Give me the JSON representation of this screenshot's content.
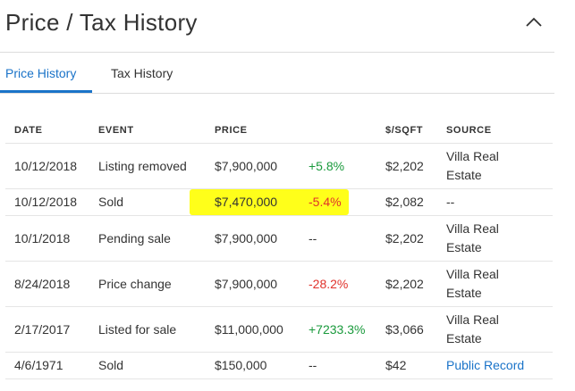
{
  "header": {
    "title": "Price / Tax History"
  },
  "tabs": [
    {
      "label": "Price History",
      "active": true
    },
    {
      "label": "Tax History",
      "active": false
    }
  ],
  "table": {
    "columns": [
      "DATE",
      "EVENT",
      "PRICE",
      "",
      "$/SQFT",
      "SOURCE"
    ],
    "rows": [
      {
        "date": "10/12/2018",
        "event": "Listing removed",
        "price": "$7,900,000",
        "change": "+5.8%",
        "change_dir": "pos",
        "sqft": "$2,202",
        "source": "Villa Real Estate",
        "source_link": false,
        "highlight": false
      },
      {
        "date": "10/12/2018",
        "event": "Sold",
        "price": "$7,470,000",
        "change": "-5.4%",
        "change_dir": "neg",
        "sqft": "$2,082",
        "source": "--",
        "source_link": false,
        "highlight": true
      },
      {
        "date": "10/1/2018",
        "event": "Pending sale",
        "price": "$7,900,000",
        "change": "--",
        "change_dir": "none",
        "sqft": "$2,202",
        "source": "Villa Real Estate",
        "source_link": false,
        "highlight": false
      },
      {
        "date": "8/24/2018",
        "event": "Price change",
        "price": "$7,900,000",
        "change": "-28.2%",
        "change_dir": "neg",
        "sqft": "$2,202",
        "source": "Villa Real Estate",
        "source_link": false,
        "highlight": false
      },
      {
        "date": "2/17/2017",
        "event": "Listed for sale",
        "price": "$11,000,000",
        "change": "+7233.3%",
        "change_dir": "pos",
        "sqft": "$3,066",
        "source": "Villa Real Estate",
        "source_link": false,
        "highlight": false
      },
      {
        "date": "4/6/1971",
        "event": "Sold",
        "price": "$150,000",
        "change": "--",
        "change_dir": "none",
        "sqft": "$42",
        "source": "Public Record",
        "source_link": true,
        "highlight": false
      }
    ]
  },
  "colors": {
    "accent": "#1a73c8",
    "positive": "#1a9a3c",
    "negative": "#e0322b",
    "highlight": "#ffff00"
  },
  "icons": {
    "collapse": "chevron-up-icon"
  }
}
